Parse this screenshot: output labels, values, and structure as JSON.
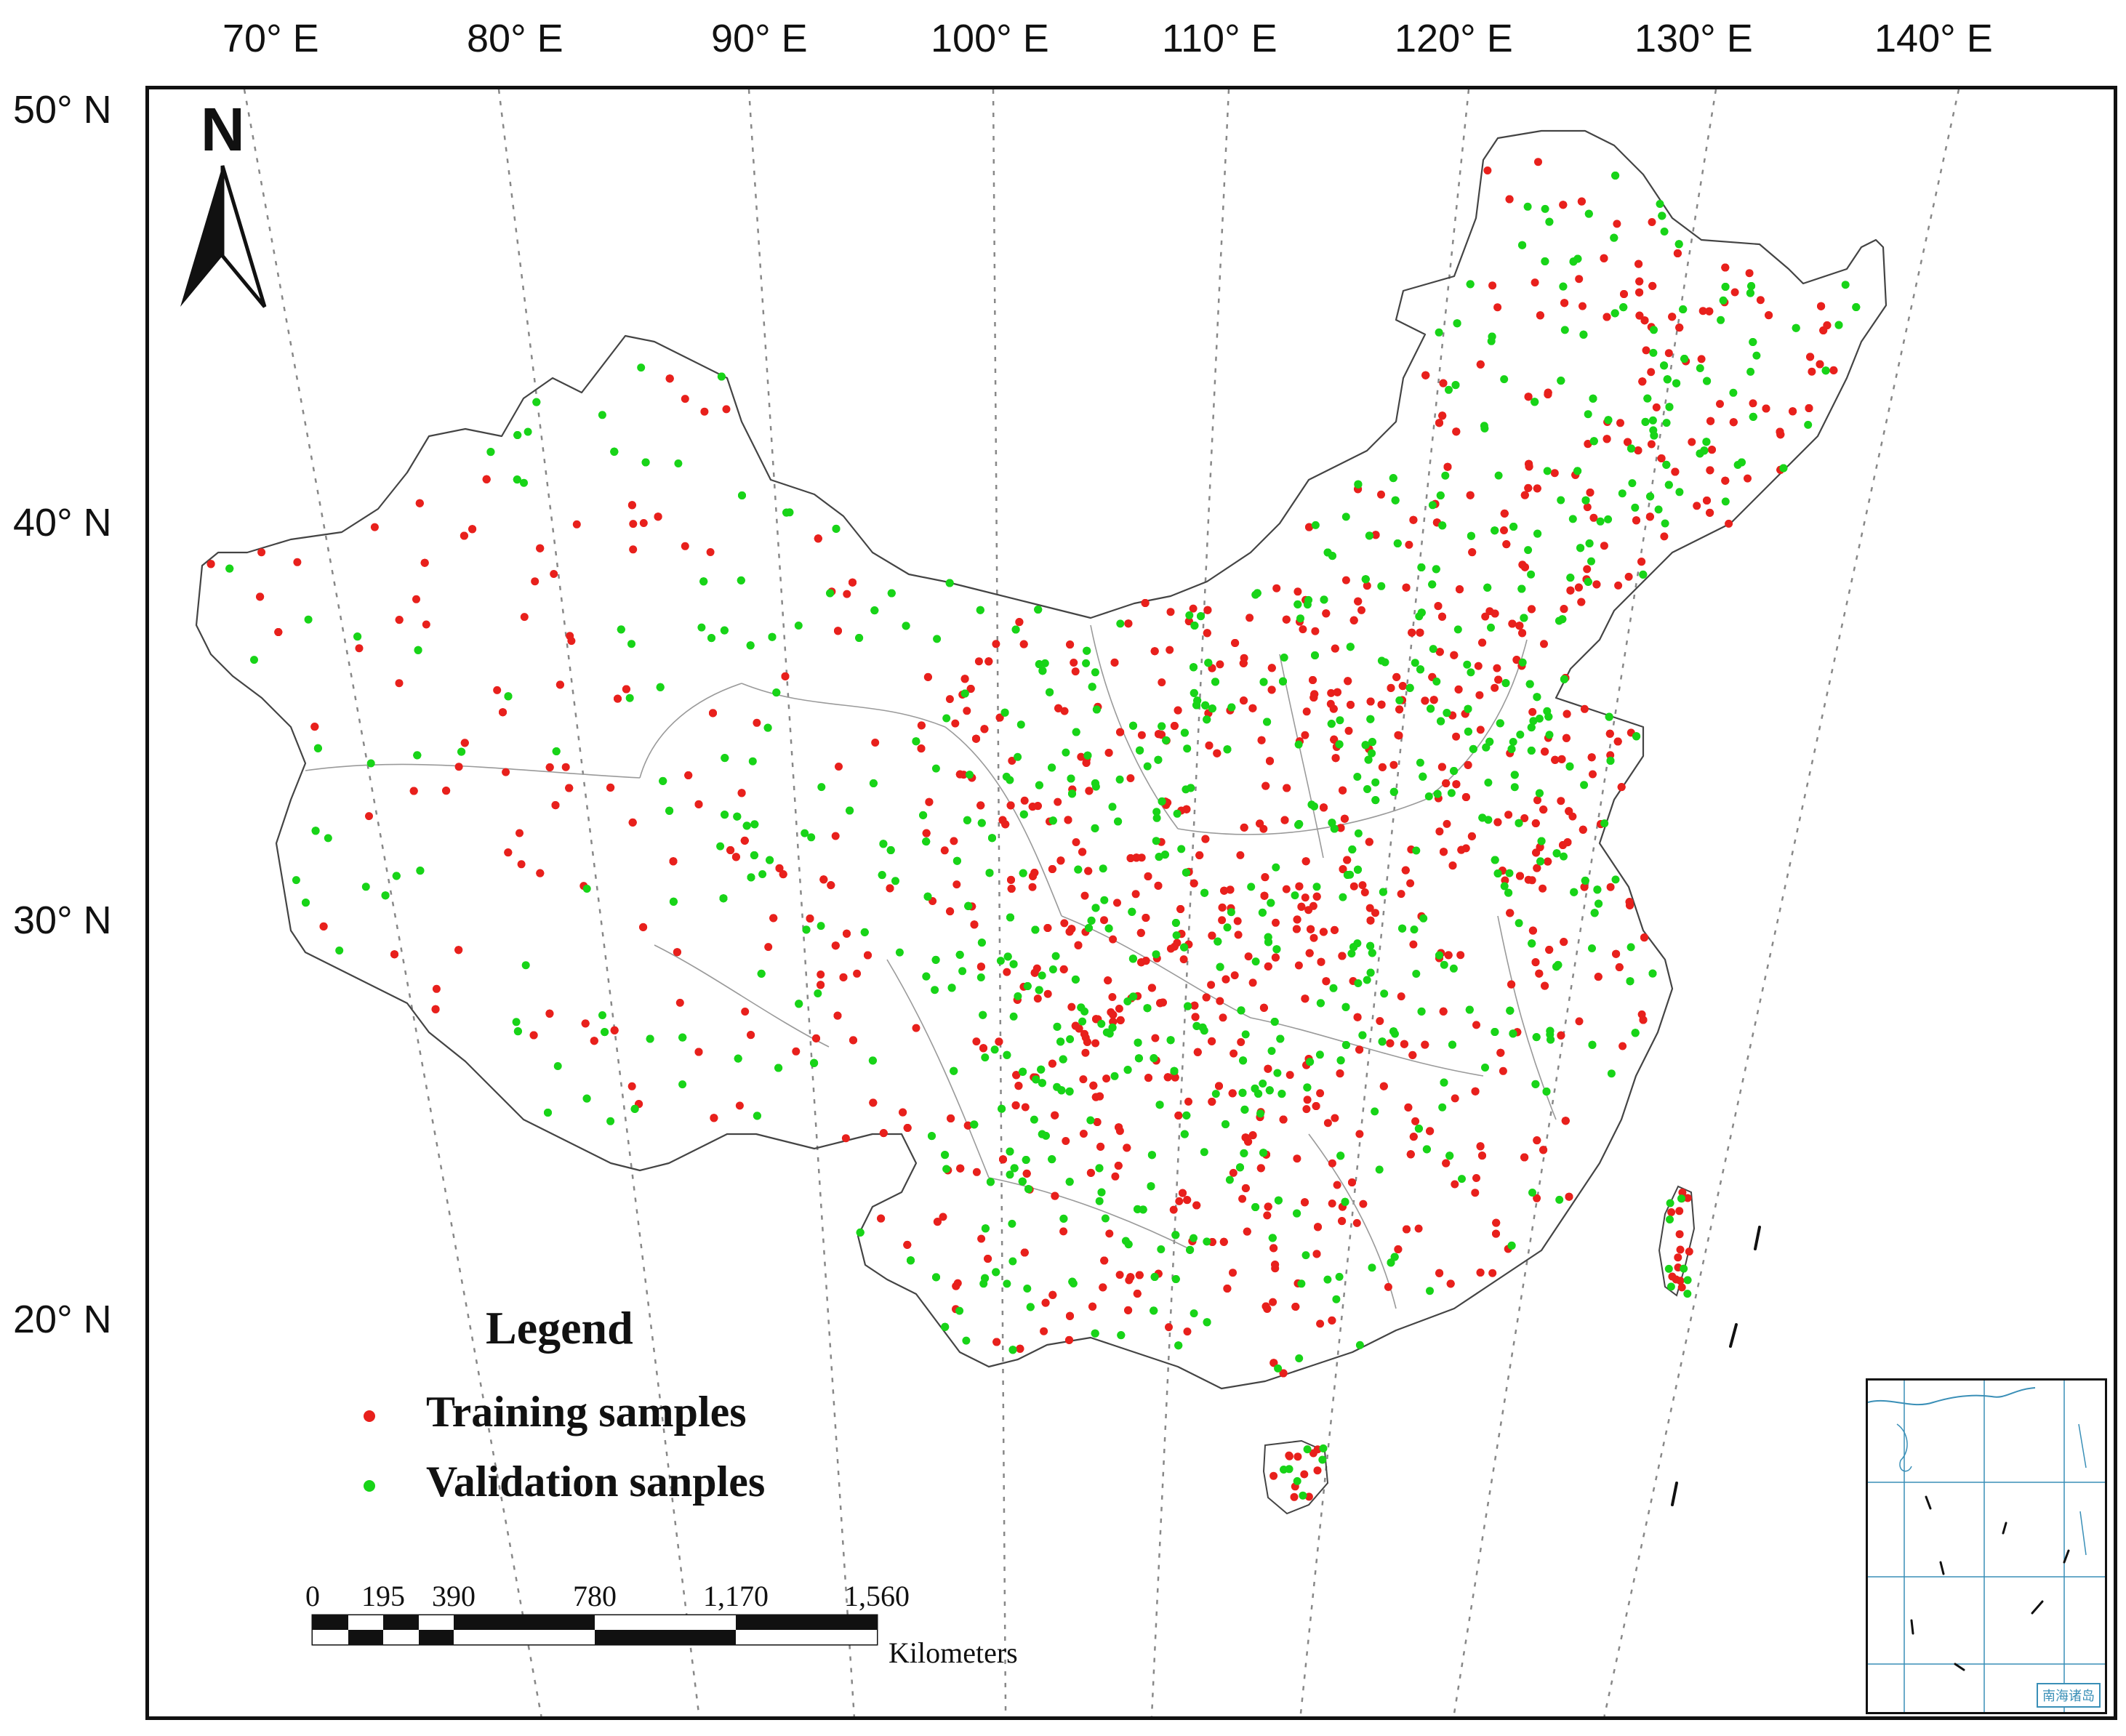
{
  "map": {
    "longitude_labels": [
      "70° E",
      "80° E",
      "90° E",
      "100° E",
      "110° E",
      "120° E",
      "130° E",
      "140° E"
    ],
    "latitude_labels": [
      "50° N",
      "40° N",
      "30° N",
      "20° N"
    ],
    "north_arrow_label": "N"
  },
  "legend": {
    "title": "Legend",
    "items": [
      {
        "label": "Training samples",
        "color": "#e8201c"
      },
      {
        "label": "Validation sanples",
        "color": "#18d418"
      }
    ]
  },
  "scale_bar": {
    "ticks": [
      "0",
      "195",
      "390",
      "780",
      "1,170",
      "1,560"
    ],
    "unit": "Kilometers"
  },
  "inset": {
    "caption": "南海诸岛"
  },
  "colors": {
    "outline": "#444444",
    "graticule": "#888888",
    "inset_line": "#3a8fb7"
  }
}
